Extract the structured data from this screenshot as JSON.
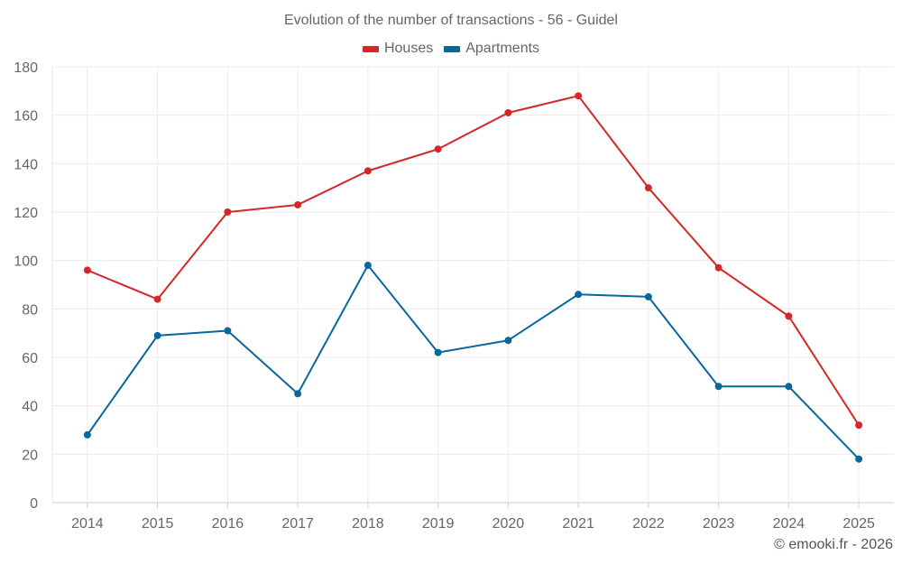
{
  "chart_data": {
    "type": "line",
    "title": "Evolution of the number of transactions - 56 - Guidel",
    "xlabel": "",
    "ylabel": "",
    "x": [
      "2014",
      "2015",
      "2016",
      "2017",
      "2018",
      "2019",
      "2020",
      "2021",
      "2022",
      "2023",
      "2024",
      "2025"
    ],
    "ylim": [
      0,
      180
    ],
    "yticks": [
      0,
      20,
      40,
      60,
      80,
      100,
      120,
      140,
      160,
      180
    ],
    "grid": true,
    "legend_position": "top-center",
    "series": [
      {
        "name": "Houses",
        "color": "#d62728",
        "values": [
          96,
          84,
          120,
          123,
          137,
          146,
          161,
          168,
          130,
          97,
          77,
          32
        ]
      },
      {
        "name": "Apartments",
        "color": "#08679c",
        "values": [
          28,
          69,
          71,
          45,
          98,
          62,
          67,
          86,
          85,
          48,
          48,
          18
        ]
      }
    ]
  },
  "footer": "© emooki.fr - 2026"
}
